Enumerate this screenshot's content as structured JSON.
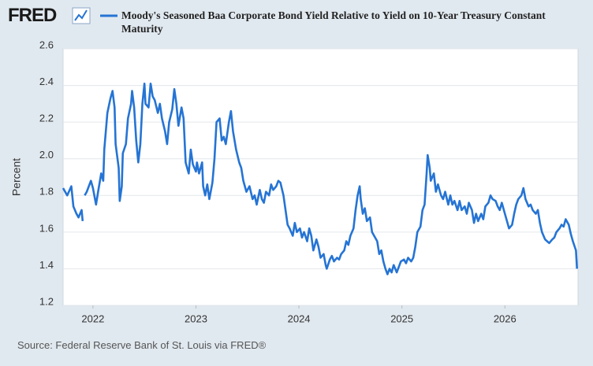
{
  "brand": "FRED",
  "source": "Source: Federal Reserve Bank of St. Louis via FRED®",
  "chart_data": {
    "type": "line",
    "y_label": "Percent",
    "xlim": [
      2021.71,
      2026.71
    ],
    "xticks": [
      2022,
      2023,
      2024,
      2025,
      2026
    ],
    "ylim": [
      1.2,
      2.6
    ],
    "yticks": [
      1.2,
      1.4,
      1.6,
      1.8,
      {
        "value": 2,
        "label": "2.0"
      },
      2.2,
      2.4,
      2.6
    ],
    "grid": true,
    "x": [
      2021.71,
      2021.75,
      2021.79,
      2021.81,
      2021.84,
      2021.86,
      2021.89,
      2021.9,
      2021.91,
      2021.92,
      2021.94,
      2021.98,
      2022.0,
      2022.03,
      2022.05,
      2022.08,
      2022.1,
      2022.11,
      2022.14,
      2022.17,
      2022.19,
      2022.21,
      2022.22,
      2022.25,
      2022.26,
      2022.28,
      2022.29,
      2022.32,
      2022.34,
      2022.37,
      2022.38,
      2022.4,
      2022.42,
      2022.44,
      2022.46,
      2022.48,
      2022.5,
      2022.51,
      2022.54,
      2022.56,
      2022.58,
      2022.6,
      2022.63,
      2022.65,
      2022.67,
      2022.7,
      2022.72,
      2022.74,
      2022.77,
      2022.79,
      2022.81,
      2022.83,
      2022.86,
      2022.88,
      2022.9,
      2022.93,
      2022.95,
      2022.97,
      2023.0,
      2023.01,
      2023.03,
      2023.06,
      2023.07,
      2023.09,
      2023.11,
      2023.13,
      2023.16,
      2023.18,
      2023.2,
      2023.23,
      2023.25,
      2023.27,
      2023.29,
      2023.32,
      2023.34,
      2023.36,
      2023.39,
      2023.42,
      2023.44,
      2023.46,
      2023.49,
      2023.52,
      2023.55,
      2023.57,
      2023.59,
      2023.62,
      2023.64,
      2023.66,
      2023.68,
      2023.71,
      2023.73,
      2023.75,
      2023.78,
      2023.8,
      2023.82,
      2023.85,
      2023.87,
      2023.89,
      2023.91,
      2023.94,
      2023.96,
      2023.98,
      2024.01,
      2024.03,
      2024.05,
      2024.08,
      2024.1,
      2024.12,
      2024.14,
      2024.17,
      2024.19,
      2024.21,
      2024.24,
      2024.26,
      2024.27,
      2024.3,
      2024.32,
      2024.34,
      2024.37,
      2024.39,
      2024.41,
      2024.44,
      2024.46,
      2024.48,
      2024.5,
      2024.53,
      2024.55,
      2024.57,
      2024.59,
      2024.6,
      2024.62,
      2024.64,
      2024.66,
      2024.69,
      2024.71,
      2024.73,
      2024.76,
      2024.78,
      2024.8,
      2024.82,
      2024.84,
      2024.86,
      2024.88,
      2024.9,
      2024.92,
      2024.95,
      2024.97,
      2024.99,
      2025.02,
      2025.04,
      2025.06,
      2025.09,
      2025.11,
      2025.13,
      2025.15,
      2025.18,
      2025.2,
      2025.22,
      2025.24,
      2025.25,
      2025.27,
      2025.28,
      2025.31,
      2025.33,
      2025.35,
      2025.38,
      2025.4,
      2025.42,
      2025.45,
      2025.47,
      2025.49,
      2025.51,
      2025.54,
      2025.56,
      2025.58,
      2025.61,
      2025.63,
      2025.65,
      2025.68,
      2025.7,
      2025.72,
      2025.74,
      2025.77,
      2025.79,
      2025.81,
      2025.84,
      2025.86,
      2025.88,
      2025.91,
      2025.93,
      2025.95,
      2025.97,
      2026.0,
      2026.02,
      2026.04,
      2026.07,
      2026.09,
      2026.11,
      2026.13,
      2026.16,
      2026.18,
      2026.2,
      2026.23,
      2026.25,
      2026.27,
      2026.3,
      2026.32,
      2026.34,
      2026.36,
      2026.39,
      2026.41,
      2026.43,
      2026.46,
      2026.48,
      2026.5,
      2026.53,
      2026.55,
      2026.57,
      2026.59,
      2026.62,
      2026.64,
      2026.66,
      2026.69,
      2026.7
    ],
    "series": [
      {
        "name": "Moody's Seasoned Baa Corporate Bond Yield Relative to Yield on 10-Year Treasury Constant Maturity",
        "color": "#2574d4",
        "values": [
          1.84,
          1.8,
          1.85,
          1.74,
          1.7,
          1.68,
          1.72,
          1.66,
          null,
          1.8,
          1.82,
          1.88,
          1.84,
          1.75,
          1.82,
          1.92,
          1.88,
          2.05,
          2.25,
          2.33,
          2.37,
          2.28,
          2.08,
          1.95,
          1.77,
          1.85,
          2.03,
          2.08,
          2.22,
          2.3,
          2.37,
          2.28,
          2.1,
          1.98,
          2.08,
          2.3,
          2.41,
          2.3,
          2.28,
          2.41,
          2.34,
          2.32,
          2.25,
          2.3,
          2.22,
          2.15,
          2.08,
          2.2,
          2.27,
          2.38,
          2.3,
          2.18,
          2.28,
          2.22,
          1.98,
          1.92,
          2.05,
          1.97,
          1.93,
          1.98,
          1.92,
          1.98,
          1.85,
          1.8,
          1.86,
          1.78,
          1.87,
          2.0,
          2.2,
          2.22,
          2.1,
          2.12,
          2.08,
          2.2,
          2.26,
          2.15,
          2.05,
          1.98,
          1.95,
          1.88,
          1.82,
          1.85,
          1.78,
          1.8,
          1.75,
          1.83,
          1.78,
          1.76,
          1.82,
          1.8,
          1.86,
          1.83,
          1.85,
          1.88,
          1.87,
          1.8,
          1.72,
          1.64,
          1.62,
          1.58,
          1.65,
          1.6,
          1.62,
          1.57,
          1.6,
          1.55,
          1.62,
          1.58,
          1.5,
          1.56,
          1.52,
          1.46,
          1.48,
          1.42,
          1.4,
          1.45,
          1.47,
          1.44,
          1.46,
          1.45,
          1.48,
          1.5,
          1.55,
          1.53,
          1.58,
          1.62,
          1.72,
          1.8,
          1.85,
          1.78,
          1.7,
          1.73,
          1.66,
          1.68,
          1.6,
          1.58,
          1.55,
          1.48,
          1.5,
          1.44,
          1.4,
          1.37,
          1.4,
          1.38,
          1.42,
          1.38,
          1.41,
          1.44,
          1.45,
          1.43,
          1.46,
          1.44,
          1.46,
          1.52,
          1.6,
          1.63,
          1.72,
          1.75,
          1.92,
          2.02,
          1.95,
          1.88,
          1.92,
          1.82,
          1.86,
          1.8,
          1.78,
          1.82,
          1.75,
          1.8,
          1.75,
          1.77,
          1.72,
          1.77,
          1.72,
          1.74,
          1.7,
          1.76,
          1.72,
          1.65,
          1.7,
          1.66,
          1.7,
          1.67,
          1.74,
          1.76,
          1.8,
          1.78,
          1.77,
          1.74,
          1.72,
          1.76,
          1.7,
          1.66,
          1.62,
          1.64,
          1.7,
          1.75,
          1.78,
          1.8,
          1.84,
          1.78,
          1.74,
          1.75,
          1.72,
          1.7,
          1.72,
          1.65,
          1.6,
          1.56,
          1.55,
          1.54,
          1.56,
          1.57,
          1.6,
          1.62,
          1.64,
          1.63,
          1.67,
          1.64,
          1.59,
          1.55,
          1.5,
          1.4
        ]
      }
    ]
  }
}
